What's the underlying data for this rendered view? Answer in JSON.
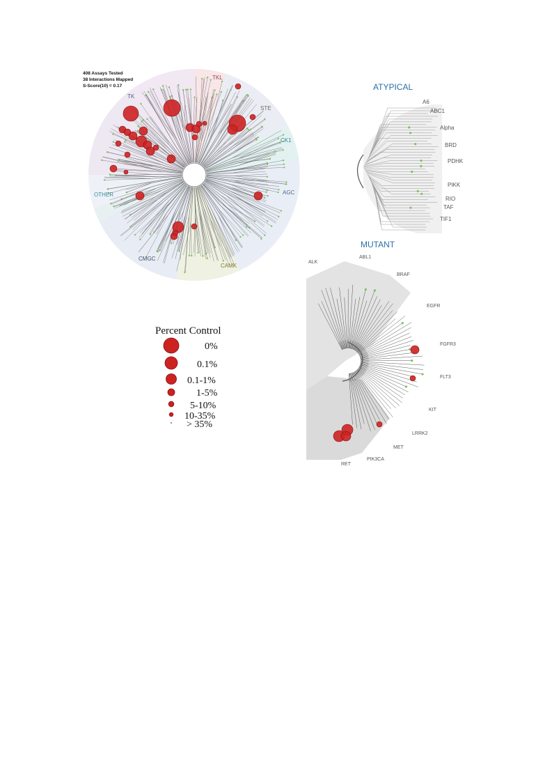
{
  "summary": {
    "assays": "408 Assays Tested",
    "interactions": "38 Interactions Mapped",
    "sscore": "S-Score(10) = 0.17"
  },
  "main_tree": {
    "groups": [
      {
        "key": "tk",
        "label": "TK",
        "color": "#5b5b8a"
      },
      {
        "key": "tkl",
        "label": "TKL",
        "color": "#a04050"
      },
      {
        "key": "ste",
        "label": "STE",
        "color": "#6a6a6a"
      },
      {
        "key": "ck1",
        "label": "CK1",
        "color": "#2e8c8c"
      },
      {
        "key": "agc",
        "label": "AGC",
        "color": "#4a6a8a"
      },
      {
        "key": "camk",
        "label": "CAMK",
        "color": "#7a7a30"
      },
      {
        "key": "cmgc",
        "label": "CMGC",
        "color": "#3e5070"
      },
      {
        "key": "other",
        "label": "OTHER",
        "color": "#3a8a9a"
      }
    ]
  },
  "atypical": {
    "title": "ATYPICAL",
    "title_color": "#2a6fa8",
    "families": [
      "A6",
      "ABC1",
      "Alpha",
      "BRD",
      "PDHK",
      "PIKK",
      "RIO",
      "TAF",
      "TIF1"
    ]
  },
  "mutant": {
    "title": "MUTANT",
    "title_color": "#2a6fa8",
    "genes": [
      "ALK",
      "ABL1",
      "BRAF",
      "EGFR",
      "FGFR3",
      "FLT3",
      "KIT",
      "LRRK2",
      "MET",
      "PIK3CA",
      "RET"
    ]
  },
  "legend": {
    "title": "Percent Control",
    "items": [
      "0%",
      "0.1%",
      "0.1-1%",
      "1-5%",
      "5-10%",
      "10-35%",
      "> 35%"
    ]
  },
  "colors": {
    "hit": "#cc2222",
    "hit_stroke": "#8a1010",
    "nonhit": "#7fbf60",
    "branch": "#6a6a6a"
  }
}
